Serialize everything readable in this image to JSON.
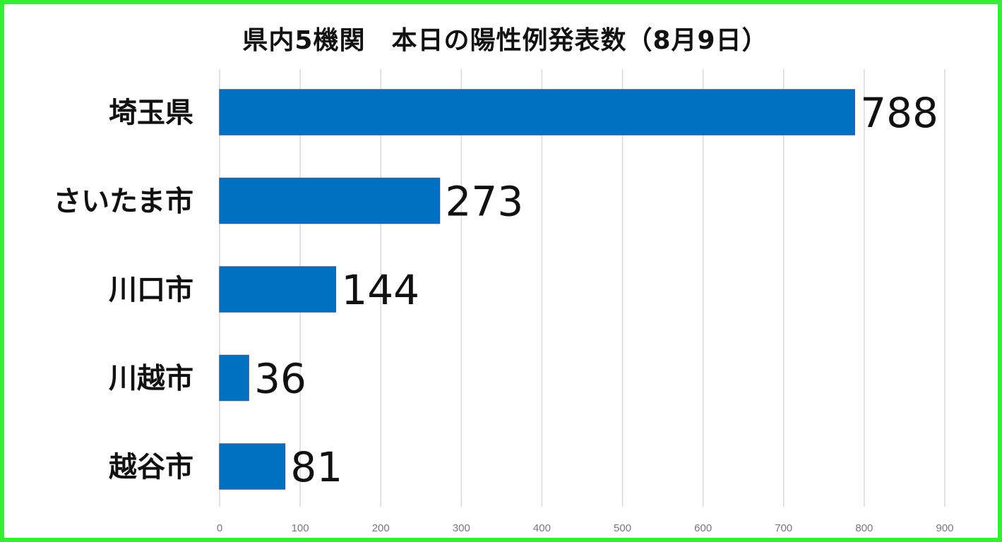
{
  "chart_data": {
    "type": "bar",
    "orientation": "horizontal",
    "title": "県内5機関　本日の陽性例発表数（8月9日）",
    "categories": [
      "埼玉県",
      "さいたま市",
      "川口市",
      "川越市",
      "越谷市"
    ],
    "values": [
      788,
      273,
      144,
      36,
      81
    ],
    "value_labels": [
      "788",
      "273",
      "144",
      "36",
      "81"
    ],
    "xlim": [
      0,
      900
    ],
    "xticks": [
      "0",
      "100",
      "200",
      "300",
      "400",
      "500",
      "600",
      "700",
      "800",
      "900"
    ],
    "grid": true,
    "bar_color": "#0070c0",
    "border_color": "#33ee33"
  }
}
